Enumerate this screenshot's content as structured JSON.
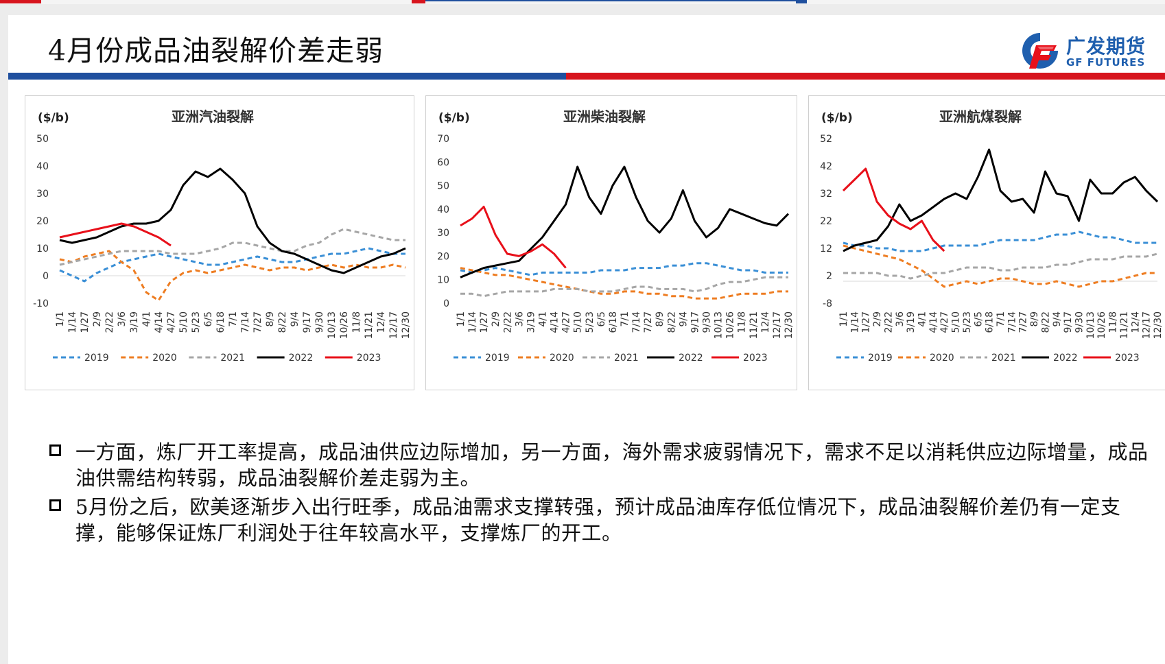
{
  "header": {
    "title": "4月份成品油裂解价差走弱",
    "logo_cn": "广发期货",
    "logo_en": "GF FUTURES",
    "colors": {
      "blue": "#1f4f9e",
      "red": "#d7141d",
      "logo": "#1f5fae"
    }
  },
  "legend_labels": [
    "2019",
    "2020",
    "2021",
    "2022",
    "2023"
  ],
  "series_colors": {
    "2019": "#3a8fd6",
    "2020": "#ee7d22",
    "2021": "#a6a6a6",
    "2022": "#000000",
    "2023": "#e8101a"
  },
  "chart_data": [
    {
      "type": "line",
      "title": "亚洲汽油裂解",
      "unit": "($/b)",
      "ylim": [
        -10,
        50
      ],
      "yticks": [
        "-10",
        "0",
        "10",
        "20",
        "30",
        "40",
        "50"
      ],
      "x_ticks": [
        "1/1",
        "1/14",
        "1/27",
        "2/9",
        "2/22",
        "3/6",
        "3/19",
        "4/1",
        "4/14",
        "4/27",
        "5/10",
        "5/23",
        "6/5",
        "6/18",
        "7/1",
        "7/14",
        "7/27",
        "8/9",
        "8/22",
        "9/4",
        "9/17",
        "9/30",
        "10/13",
        "10/26",
        "11/8",
        "11/21",
        "12/4",
        "12/17",
        "12/30"
      ],
      "x": [
        1,
        14,
        27,
        40,
        53,
        66,
        79,
        92,
        105,
        118,
        131,
        144,
        157,
        170,
        183,
        196,
        209,
        222,
        235,
        248,
        261,
        274,
        287,
        300,
        313,
        326,
        339,
        352,
        365
      ],
      "series": [
        {
          "name": "2019",
          "values": [
            2,
            0,
            -2,
            1,
            3,
            5,
            6,
            7,
            8,
            7,
            6,
            5,
            4,
            4,
            5,
            6,
            7,
            6,
            5,
            5,
            6,
            7,
            8,
            8,
            9,
            10,
            9,
            8,
            8
          ]
        },
        {
          "name": "2020",
          "values": [
            6,
            5,
            7,
            8,
            9,
            5,
            2,
            -6,
            -9,
            -2,
            1,
            2,
            1,
            2,
            3,
            4,
            3,
            2,
            3,
            3,
            2,
            3,
            4,
            3,
            4,
            3,
            3,
            4,
            3
          ]
        },
        {
          "name": "2021",
          "values": [
            4,
            5,
            6,
            7,
            8,
            9,
            9,
            9,
            9,
            8,
            8,
            8,
            9,
            10,
            12,
            12,
            11,
            10,
            9,
            9,
            11,
            12,
            15,
            17,
            16,
            15,
            14,
            13,
            13
          ]
        },
        {
          "name": "2022",
          "values": [
            13,
            12,
            13,
            14,
            16,
            18,
            19,
            19,
            20,
            24,
            33,
            38,
            36,
            39,
            35,
            30,
            18,
            12,
            9,
            8,
            6,
            4,
            2,
            1,
            3,
            5,
            7,
            8,
            10
          ]
        },
        {
          "name": "2023",
          "values": [
            14,
            15,
            16,
            17,
            18,
            19,
            18,
            16,
            14,
            11,
            null,
            null,
            null,
            null,
            null,
            null,
            null,
            null,
            null,
            null,
            null,
            null,
            null,
            null,
            null,
            null,
            null,
            null,
            null
          ]
        }
      ]
    },
    {
      "type": "line",
      "title": "亚洲柴油裂解",
      "unit": "($/b)",
      "ylim": [
        0,
        70
      ],
      "yticks": [
        "0",
        "10",
        "20",
        "30",
        "40",
        "50",
        "60",
        "70"
      ],
      "x_ticks": [
        "1/1",
        "1/14",
        "1/27",
        "2/9",
        "2/22",
        "3/6",
        "3/19",
        "4/1",
        "4/14",
        "4/27",
        "5/10",
        "5/23",
        "6/5",
        "6/18",
        "7/1",
        "7/14",
        "7/27",
        "8/9",
        "8/22",
        "9/4",
        "9/17",
        "9/30",
        "10/13",
        "10/26",
        "11/8",
        "11/21",
        "12/4",
        "12/17",
        "12/30"
      ],
      "x": [
        1,
        14,
        27,
        40,
        53,
        66,
        79,
        92,
        105,
        118,
        131,
        144,
        157,
        170,
        183,
        196,
        209,
        222,
        235,
        248,
        261,
        274,
        287,
        300,
        313,
        326,
        339,
        352,
        365
      ],
      "series": [
        {
          "name": "2019",
          "values": [
            14,
            13,
            14,
            15,
            14,
            13,
            12,
            13,
            13,
            13,
            13,
            13,
            14,
            14,
            14,
            15,
            15,
            15,
            16,
            16,
            17,
            17,
            16,
            15,
            14,
            14,
            13,
            13,
            13
          ]
        },
        {
          "name": "2020",
          "values": [
            15,
            14,
            13,
            12,
            12,
            11,
            10,
            9,
            8,
            7,
            6,
            5,
            4,
            4,
            5,
            5,
            4,
            4,
            3,
            3,
            2,
            2,
            2,
            3,
            4,
            4,
            4,
            5,
            5
          ]
        },
        {
          "name": "2021",
          "values": [
            4,
            4,
            3,
            4,
            5,
            5,
            5,
            5,
            6,
            6,
            6,
            5,
            5,
            5,
            6,
            7,
            7,
            6,
            6,
            6,
            5,
            6,
            8,
            9,
            9,
            10,
            11,
            11,
            11
          ]
        },
        {
          "name": "2022",
          "values": [
            11,
            13,
            15,
            16,
            17,
            18,
            23,
            28,
            35,
            42,
            58,
            45,
            38,
            50,
            58,
            45,
            35,
            30,
            36,
            48,
            35,
            28,
            32,
            40,
            38,
            36,
            34,
            33,
            38
          ]
        },
        {
          "name": "2023",
          "values": [
            33,
            36,
            41,
            29,
            21,
            20,
            22,
            25,
            21,
            15,
            null,
            null,
            null,
            null,
            null,
            null,
            null,
            null,
            null,
            null,
            null,
            null,
            null,
            null,
            null,
            null,
            null,
            null,
            null
          ]
        }
      ]
    },
    {
      "type": "line",
      "title": "亚洲航煤裂解",
      "unit": "($/b)",
      "ylim": [
        -8,
        52
      ],
      "yticks": [
        "-8",
        "2",
        "12",
        "22",
        "32",
        "42",
        "52"
      ],
      "x_ticks": [
        "1/1",
        "1/14",
        "1/27",
        "2/9",
        "2/22",
        "3/6",
        "3/19",
        "4/1",
        "4/14",
        "4/27",
        "5/10",
        "5/23",
        "6/5",
        "6/18",
        "7/1",
        "7/14",
        "7/27",
        "8/9",
        "8/22",
        "9/4",
        "9/17",
        "9/30",
        "10/13",
        "10/26",
        "11/8",
        "11/21",
        "12/4",
        "12/17",
        "12/30"
      ],
      "x": [
        1,
        14,
        27,
        40,
        53,
        66,
        79,
        92,
        105,
        118,
        131,
        144,
        157,
        170,
        183,
        196,
        209,
        222,
        235,
        248,
        261,
        274,
        287,
        300,
        313,
        326,
        339,
        352,
        365
      ],
      "series": [
        {
          "name": "2019",
          "values": [
            14,
            13,
            13,
            12,
            12,
            11,
            11,
            11,
            12,
            13,
            13,
            13,
            13,
            14,
            15,
            15,
            15,
            15,
            16,
            17,
            17,
            18,
            17,
            16,
            16,
            15,
            14,
            14,
            14
          ]
        },
        {
          "name": "2020",
          "values": [
            13,
            12,
            11,
            10,
            9,
            8,
            6,
            4,
            1,
            -2,
            -1,
            0,
            -1,
            0,
            1,
            1,
            0,
            -1,
            -1,
            0,
            -1,
            -2,
            -1,
            0,
            0,
            1,
            2,
            3,
            3
          ]
        },
        {
          "name": "2021",
          "values": [
            3,
            3,
            3,
            3,
            2,
            2,
            1,
            2,
            3,
            3,
            4,
            5,
            5,
            5,
            4,
            4,
            5,
            5,
            5,
            6,
            6,
            7,
            8,
            8,
            8,
            9,
            9,
            9,
            10
          ]
        },
        {
          "name": "2022",
          "values": [
            11,
            13,
            14,
            15,
            20,
            28,
            22,
            24,
            27,
            30,
            32,
            30,
            38,
            48,
            33,
            29,
            30,
            25,
            40,
            32,
            31,
            22,
            37,
            32,
            32,
            36,
            38,
            33,
            29
          ]
        },
        {
          "name": "2023",
          "values": [
            33,
            37,
            41,
            29,
            24,
            21,
            19,
            22,
            15,
            11,
            null,
            null,
            null,
            null,
            null,
            null,
            null,
            null,
            null,
            null,
            null,
            null,
            null,
            null,
            null,
            null,
            null,
            null,
            null
          ]
        }
      ]
    }
  ],
  "bullets": [
    "一方面，炼厂开工率提高，成品油供应边际增加，另一方面，海外需求疲弱情况下，需求不足以消耗供应边际增量，成品油供需结构转弱，成品油裂解价差走弱为主。",
    "5月份之后，欧美逐渐步入出行旺季，成品油需求支撑转强，预计成品油库存低位情况下，成品油裂解价差仍有一定支撑，能够保证炼厂利润处于往年较高水平，支撑炼厂的开工。"
  ]
}
